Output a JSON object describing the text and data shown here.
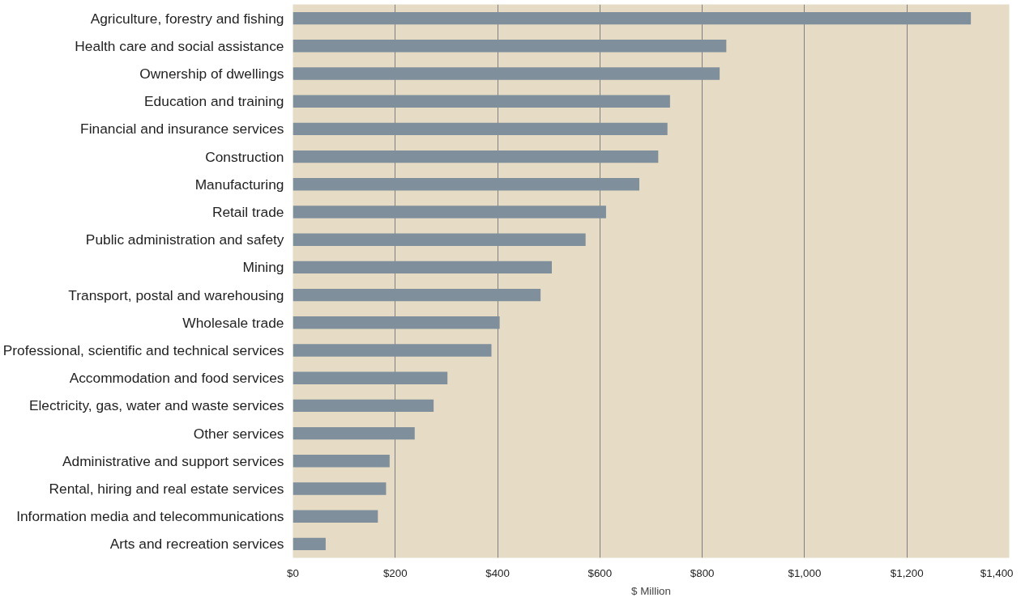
{
  "chart_data": {
    "type": "bar",
    "orientation": "horizontal",
    "xlabel": "$ Million",
    "categories": [
      "Agriculture, forestry and fishing",
      "Health care and social assistance",
      "Ownership of dwellings",
      "Education and training",
      "Financial and insurance services",
      "Construction",
      "Manufacturing",
      "Retail trade",
      "Public administration and safety",
      "Mining",
      "Transport, postal and warehousing",
      "Wholesale trade",
      "Professional, scientific and technical services",
      "Accommodation and food services",
      "Electricity, gas, water and waste services",
      "Other services",
      "Administrative and support services",
      "Rental, hiring and real estate services",
      "Information media and telecommunications",
      "Arts and recreation services"
    ],
    "values": [
      1325,
      847,
      834,
      737,
      732,
      714,
      677,
      612,
      572,
      506,
      484,
      404,
      388,
      302,
      275,
      238,
      189,
      182,
      166,
      64
    ],
    "color": "#7f8f9c",
    "xlim": [
      0,
      1400
    ],
    "xticks": [
      {
        "value": 0,
        "label": "$0"
      },
      {
        "value": 200,
        "label": "$200"
      },
      {
        "value": 400,
        "label": "$400"
      },
      {
        "value": 600,
        "label": "$600"
      },
      {
        "value": 800,
        "label": "$800"
      },
      {
        "value": 1000,
        "label": "$1,000"
      },
      {
        "value": 1200,
        "label": "$1,200"
      },
      {
        "value": 1400,
        "label": "$1,400"
      }
    ],
    "grid": "x",
    "legend": false
  }
}
